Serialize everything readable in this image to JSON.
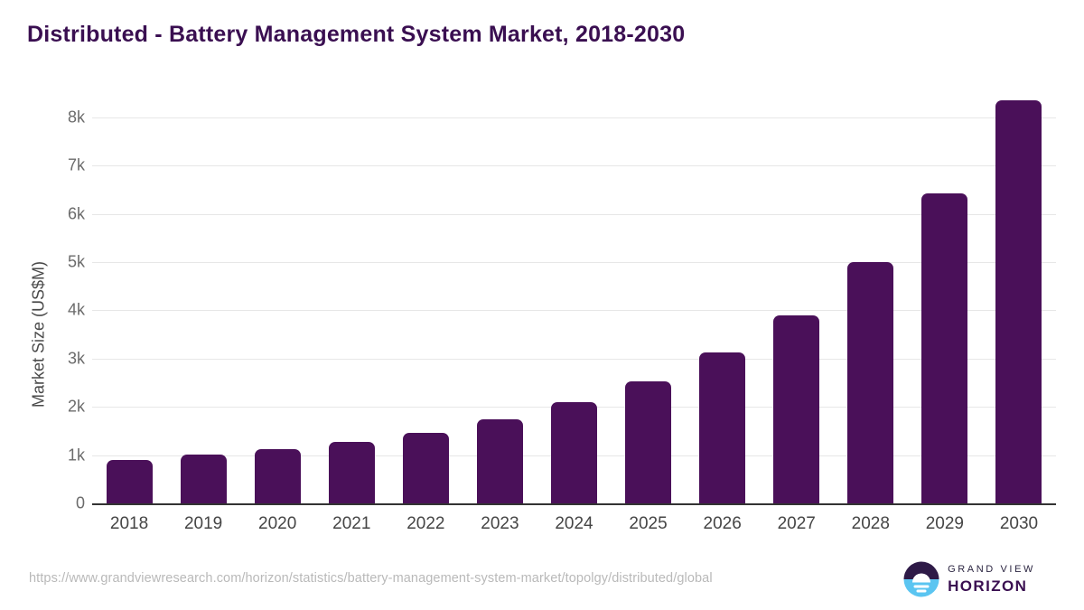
{
  "title": "Distributed - Battery Management System Market, 2018-2030",
  "chart_data": {
    "type": "bar",
    "title": "Distributed - Battery Management System Market, 2018-2030",
    "xlabel": "",
    "ylabel": "Market Size (US$M)",
    "categories": [
      "2018",
      "2019",
      "2020",
      "2021",
      "2022",
      "2023",
      "2024",
      "2025",
      "2026",
      "2027",
      "2028",
      "2029",
      "2030"
    ],
    "values": [
      890,
      1010,
      1120,
      1270,
      1470,
      1740,
      2090,
      2530,
      3120,
      3900,
      4990,
      6430,
      8350
    ],
    "ylim": [
      0,
      8500
    ],
    "yticks": [
      {
        "value": 0,
        "label": "0"
      },
      {
        "value": 1000,
        "label": "1k"
      },
      {
        "value": 2000,
        "label": "2k"
      },
      {
        "value": 3000,
        "label": "3k"
      },
      {
        "value": 4000,
        "label": "4k"
      },
      {
        "value": 5000,
        "label": "5k"
      },
      {
        "value": 6000,
        "label": "6k"
      },
      {
        "value": 7000,
        "label": "7k"
      },
      {
        "value": 8000,
        "label": "8k"
      }
    ],
    "grid": "horizontal",
    "legend_position": "none",
    "bar_color": "#4a1059"
  },
  "colors": {
    "title": "#3a0f51",
    "bar": "#4a1059",
    "gridline": "#e7e7e7",
    "axis_line": "#333333",
    "tick_label": "#6b6b6b",
    "x_label": "#454545",
    "url_text": "#b9b9b9",
    "logo_dark": "#2e1a47",
    "logo_blue": "#5bc5f1"
  },
  "footer": {
    "source_url": "https://www.grandviewresearch.com/horizon/statistics/battery-management-system-market/topolgy/distributed/global",
    "logo": {
      "line1": "GRAND VIEW",
      "line2": "HORIZON"
    }
  }
}
